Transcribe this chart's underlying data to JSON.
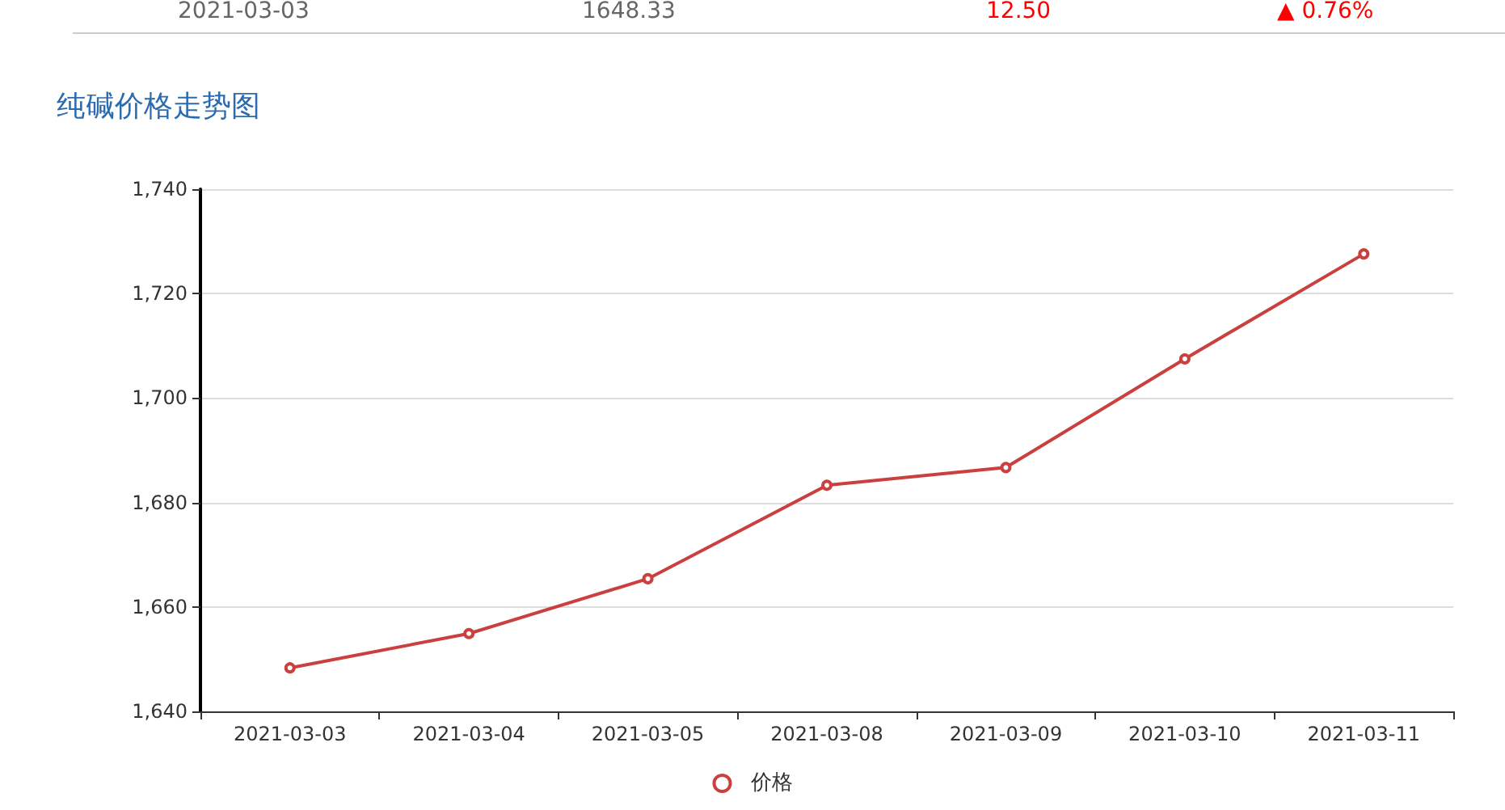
{
  "chart_data": {
    "type": "line",
    "title": "纯碱价格走势图",
    "annotations": [
      "2021-03-03",
      "1648.33",
      "12.50",
      "▲ 0.76%"
    ],
    "categories": [
      "2021-03-03",
      "2021-03-04",
      "2021-03-05",
      "2021-03-08",
      "2021-03-09",
      "2021-03-10",
      "2021-03-11"
    ],
    "series": [
      {
        "name": "价格",
        "color": "#c9403f",
        "values": [
          1648.33,
          1654.9,
          1665.4,
          1683.3,
          1686.7,
          1707.5,
          1727.6
        ]
      }
    ],
    "ylim": [
      1640,
      1740
    ],
    "yticks": [
      {
        "value": 1640,
        "label": "1,640"
      },
      {
        "value": 1660,
        "label": "1,660"
      },
      {
        "value": 1680,
        "label": "1,680"
      },
      {
        "value": 1700,
        "label": "1,700"
      },
      {
        "value": 1720,
        "label": "1,720"
      },
      {
        "value": 1740,
        "label": "1,740"
      }
    ],
    "grid": "y",
    "legend": "bottom",
    "marker": "circle",
    "line_style": "solid"
  }
}
